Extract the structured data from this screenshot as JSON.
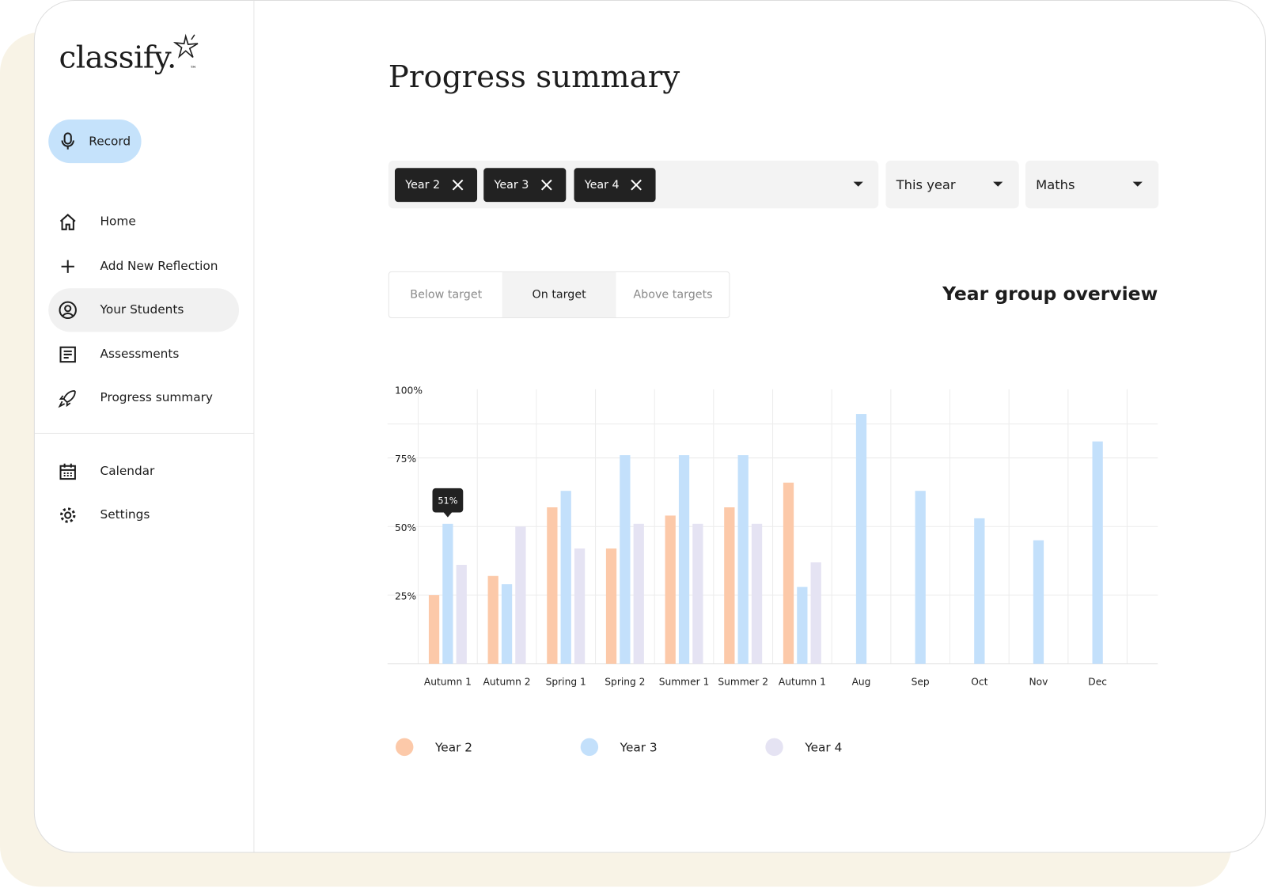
{
  "sidebar": {
    "logo": "classify.",
    "logo_mark": "™",
    "record": "Record",
    "nav": [
      "Home",
      "Add New Reflection",
      "Your Students",
      "Assessments",
      "Progress summary"
    ],
    "secondary_nav": [
      "Calendar",
      "Settings"
    ]
  },
  "header": {
    "title": "Progress summary"
  },
  "filters": {
    "chips": [
      "Year 2",
      "Year 3",
      "Year 4"
    ],
    "period": "This year",
    "subject": "Maths"
  },
  "tabs": [
    "Below target",
    "On target",
    "Above targets"
  ],
  "chart_data": {
    "type": "bar",
    "title": "Year group overview",
    "categories": [
      "Autumn 1",
      "Autumn 2",
      "Spring 1",
      "Spring 2",
      "Summer 1",
      "Summer 2",
      "Autumn 1",
      "Aug",
      "Sep",
      "Oct",
      "Nov",
      "Dec"
    ],
    "series": [
      {
        "name": "Year 2",
        "color": "#fcc9a9",
        "values": [
          25,
          32,
          57,
          42,
          54,
          57,
          66,
          null,
          null,
          null,
          null,
          null
        ]
      },
      {
        "name": "Year 3",
        "color": "#c3e0fb",
        "values": [
          51,
          29,
          63,
          76,
          76,
          76,
          28,
          91,
          63,
          53,
          45,
          81
        ],
        "value_labels": [
          "51%",
          null,
          null,
          null,
          null,
          null,
          null,
          null,
          null,
          null,
          null,
          null
        ]
      },
      {
        "name": "Year 4",
        "color": "#e5e3f3",
        "values": [
          36,
          50,
          42,
          51,
          51,
          51,
          37,
          null,
          null,
          null,
          null,
          null
        ]
      }
    ],
    "ylim": [
      0,
      100
    ],
    "yticks": [
      {
        "value": 25,
        "label": "25%"
      },
      {
        "value": 50,
        "label": "50%"
      },
      {
        "value": 75,
        "label": "75%"
      },
      {
        "value": 100,
        "label": "100%"
      }
    ],
    "grid": true,
    "legend": "bottom"
  }
}
